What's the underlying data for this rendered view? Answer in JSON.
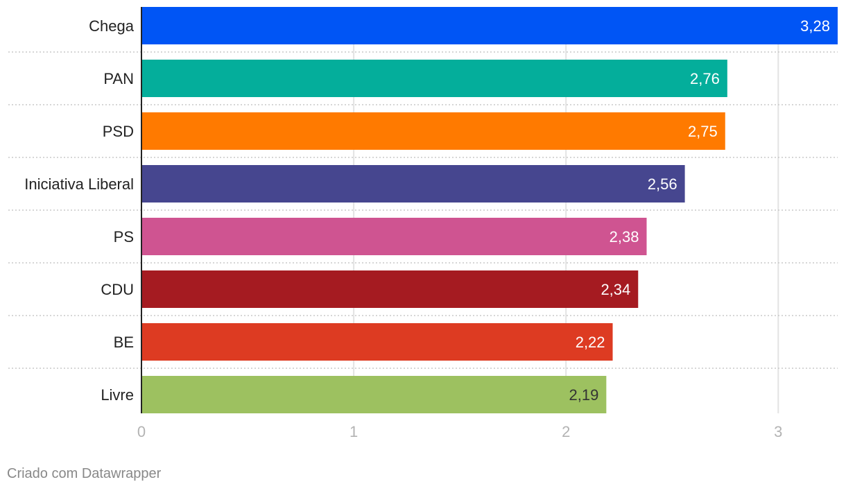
{
  "chart_data": {
    "type": "bar",
    "orientation": "horizontal",
    "categories": [
      "Chega",
      "PAN",
      "PSD",
      "Iniciativa Liberal",
      "PS",
      "CDU",
      "BE",
      "Livre"
    ],
    "values": [
      3.28,
      2.76,
      2.75,
      2.56,
      2.38,
      2.34,
      2.22,
      2.19
    ],
    "value_labels": [
      "3,28",
      "2,76",
      "2,75",
      "2,56",
      "2,38",
      "2,34",
      "2,22",
      "2,19"
    ],
    "colors": [
      "#0055f5",
      "#04ae9b",
      "#ff7a00",
      "#46468f",
      "#cf5491",
      "#a51b21",
      "#dd3b22",
      "#9dc160"
    ],
    "label_colors": [
      "#ffffff",
      "#ffffff",
      "#ffffff",
      "#ffffff",
      "#ffffff",
      "#ffffff",
      "#ffffff",
      "#333333"
    ],
    "xlim": [
      0,
      3.28
    ],
    "x_ticks": [
      0,
      1,
      2,
      3
    ],
    "x_tick_labels": [
      "0",
      "1",
      "2",
      "3"
    ],
    "grid": true
  },
  "footer": {
    "credit": "Criado com Datawrapper"
  }
}
